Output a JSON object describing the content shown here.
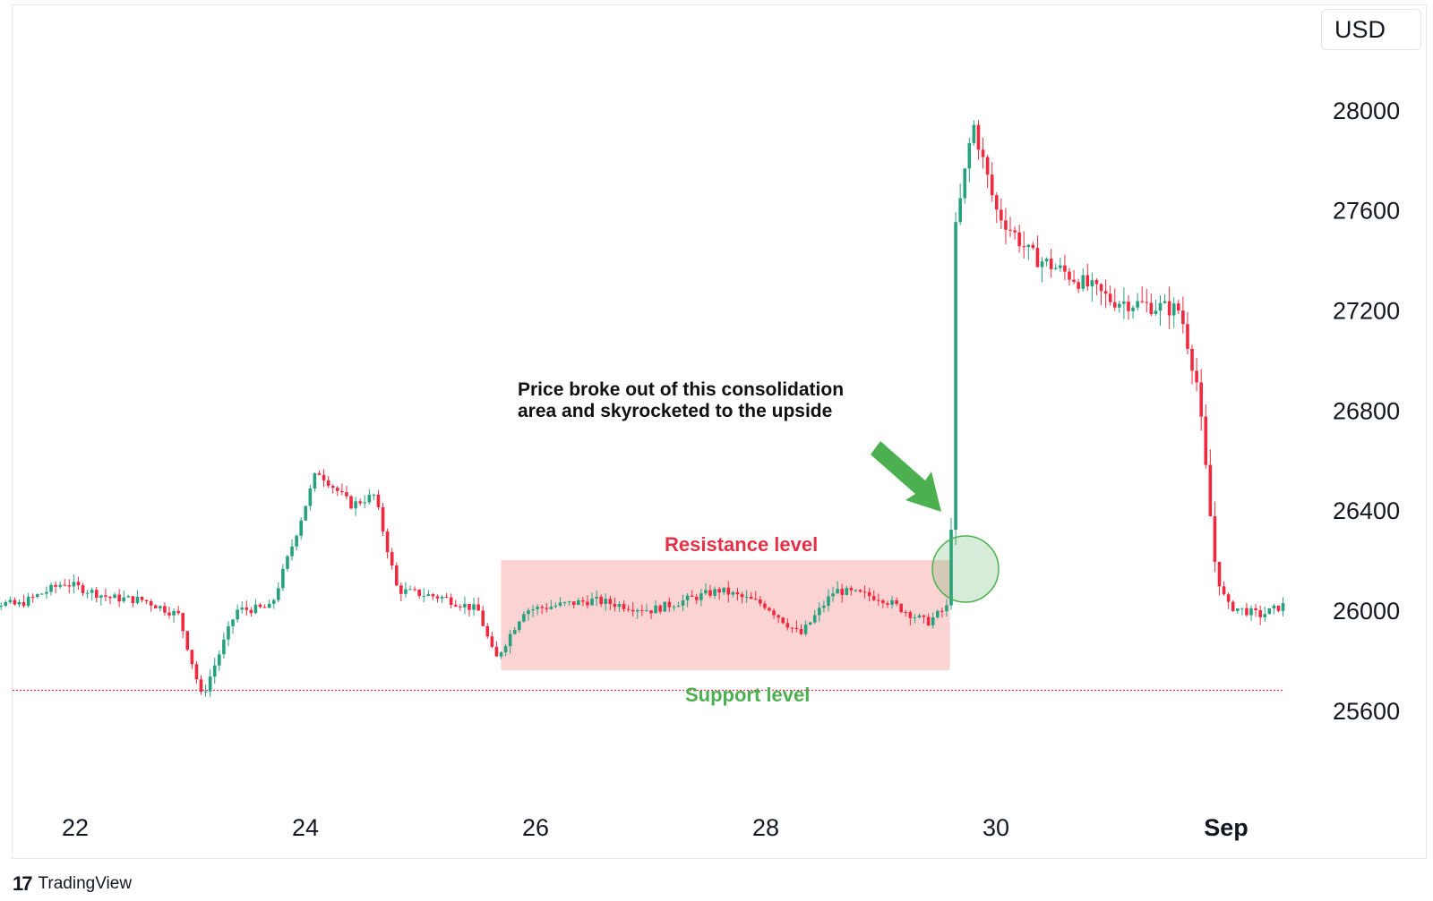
{
  "currency": "USD",
  "annotation": {
    "line1": "Price broke out of this consolidation",
    "line2": "area and skyrocketed to the upside"
  },
  "labels": {
    "resistance": "Resistance level",
    "support": "Support level"
  },
  "watermark": "TradingView",
  "colors": {
    "up": "#26a17f",
    "down": "#f0293e",
    "zone": "#fbd3d3",
    "support_line": "#e53146",
    "breakout_circle": "#4caf50",
    "arrow": "#4caf50"
  },
  "chart_data": {
    "type": "candlestick",
    "symbol_currency": "USD",
    "x_tick_labels": [
      "22",
      "24",
      "26",
      "28",
      "30",
      "Sep"
    ],
    "y_ticks": [
      25600,
      26000,
      26400,
      26800,
      27200,
      27600,
      28000
    ],
    "y_range": [
      25300,
      28300
    ],
    "support_level": 25680,
    "consolidation_zone": {
      "price_low": 25760,
      "price_high": 26200,
      "from": "Aug 25.7",
      "to": "Aug 29.6"
    },
    "series_close_path": [
      [
        "Aug 21.0",
        26050
      ],
      [
        "Aug 21.5",
        26020
      ],
      [
        "Aug 21.9",
        26110
      ],
      [
        "Aug 22.3",
        26050
      ],
      [
        "Aug 22.6",
        26040
      ],
      [
        "Aug 22.9",
        25980
      ],
      [
        "Aug 23.1",
        25650
      ],
      [
        "Aug 23.4",
        26000
      ],
      [
        "Aug 23.7",
        26010
      ],
      [
        "Aug 23.9",
        26280
      ],
      [
        "Aug 24.1",
        26560
      ],
      [
        "Aug 24.4",
        26420
      ],
      [
        "Aug 24.6",
        26460
      ],
      [
        "Aug 24.8",
        26080
      ],
      [
        "Aug 25.2",
        26050
      ],
      [
        "Aug 25.5",
        26000
      ],
      [
        "Aug 25.65",
        25800
      ],
      [
        "Aug 25.9",
        26000
      ],
      [
        "Aug 26.5",
        26040
      ],
      [
        "Aug 27.0",
        26000
      ],
      [
        "Aug 27.6",
        26080
      ],
      [
        "Aug 28.0",
        26020
      ],
      [
        "Aug 28.3",
        25900
      ],
      [
        "Aug 28.6",
        26080
      ],
      [
        "Aug 29.0",
        26050
      ],
      [
        "Aug 29.4",
        25950
      ],
      [
        "Aug 29.6",
        26020
      ],
      [
        "Aug 29.65",
        27520
      ],
      [
        "Aug 29.8",
        27950
      ],
      [
        "Aug 30.0",
        27600
      ],
      [
        "Aug 30.3",
        27420
      ],
      [
        "Aug 30.6",
        27350
      ],
      [
        "Aug 31.0",
        27240
      ],
      [
        "Aug 31.3",
        27220
      ],
      [
        "Aug 31.6",
        27200
      ],
      [
        "Aug 31.75",
        26900
      ],
      [
        "Aug 31.9",
        26200
      ],
      [
        "Sep 1.0",
        26020
      ],
      [
        "Sep 1.3",
        25980
      ],
      [
        "Sep 1.5",
        26020
      ]
    ]
  }
}
